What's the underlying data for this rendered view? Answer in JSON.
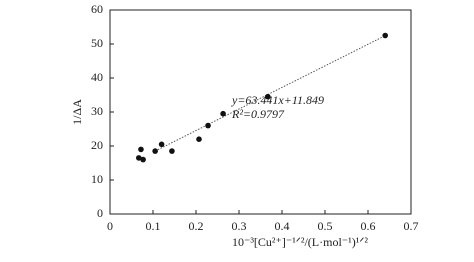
{
  "chart_data": {
    "type": "scatter",
    "x_label": "10⁻³[Cu²⁺]⁻¹ᐟ²/(L·mol⁻¹)¹ᐟ²",
    "y_label": "1/ΔA",
    "x": [
      0.067,
      0.072,
      0.077,
      0.105,
      0.12,
      0.144,
      0.207,
      0.228,
      0.263,
      0.367,
      0.64
    ],
    "values": [
      16.5,
      19,
      16,
      18.5,
      20.5,
      18.5,
      22,
      26,
      29.5,
      34.5,
      52.5
    ],
    "color": "#111111",
    "trendline": {
      "equation": "y=63.441x+11.849",
      "r2": "R²=0.9797",
      "slope": 63.441,
      "intercept": 11.849
    },
    "xlim": [
      0,
      0.7
    ],
    "xticks": [
      0,
      0.1,
      0.2,
      0.3,
      0.4,
      0.5,
      0.6,
      0.7
    ],
    "ylim": [
      0,
      60
    ],
    "yticks": [
      0,
      10,
      20,
      30,
      40,
      50,
      60
    ],
    "grid": false
  }
}
